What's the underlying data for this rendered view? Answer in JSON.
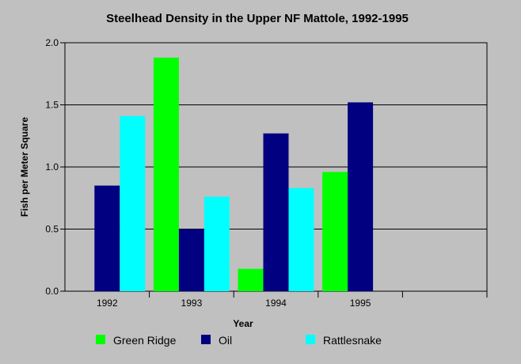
{
  "chart_data": {
    "type": "bar",
    "title": "Steelhead Density in the Upper NF Mattole, 1992-1995",
    "xlabel": "Year",
    "ylabel": "Fish per Meter Square",
    "ylim": [
      0,
      2
    ],
    "yticks": [
      "0.0",
      "0.5",
      "1.0",
      "1.5",
      "2.0"
    ],
    "categories": [
      "1992",
      "1993",
      "1994",
      "1995",
      ""
    ],
    "series": [
      {
        "name": "Green Ridge",
        "color": "#00ff00",
        "values": [
          null,
          1.88,
          0.18,
          0.96,
          null
        ]
      },
      {
        "name": "Oil",
        "color": "#000080",
        "values": [
          0.85,
          0.5,
          1.27,
          1.52,
          null
        ]
      },
      {
        "name": "Rattlesnake",
        "color": "#00ffff",
        "values": [
          1.41,
          0.76,
          0.83,
          null,
          null
        ]
      }
    ],
    "grid": true,
    "legend_position": "bottom",
    "background_color": "#c0c0c0"
  }
}
